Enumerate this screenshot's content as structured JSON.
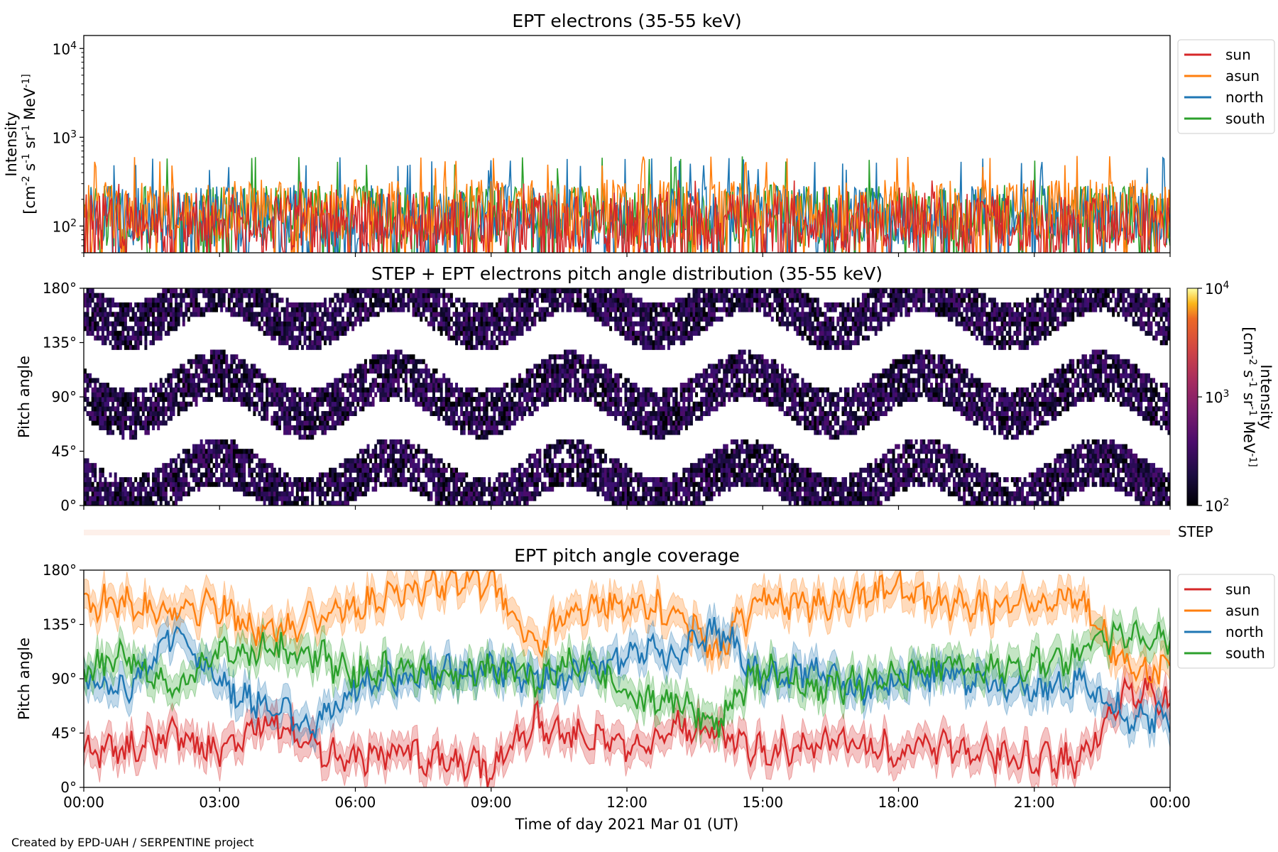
{
  "footer": {
    "credit": "Created by EPD-UAH / SERPENTINE project"
  },
  "colors": {
    "sun": "#d62728",
    "asun": "#ff7f0e",
    "north": "#1f77b4",
    "south": "#2ca02c"
  },
  "colorbar": {
    "colormap": "inferno",
    "ticks": [
      "10^2",
      "10^3",
      "10^4"
    ]
  },
  "chart_data": [
    {
      "type": "line",
      "title": "EPT electrons (35-55 keV)",
      "ylabel": "Intensity",
      "ylabel_units": "[cm^-2 s^-1 sr^-1 MeV^-1]",
      "yscale": "log",
      "ylim": [
        50,
        14000
      ],
      "yticks": [
        "10^2",
        "10^3",
        "10^4"
      ],
      "xlim": [
        "00:00",
        "24:00"
      ],
      "legend": {
        "position": "outside-right",
        "entries": [
          "sun",
          "asun",
          "north",
          "south"
        ]
      },
      "series": [
        {
          "name": "sun",
          "baseline_median": 110,
          "typical_range": [
            50,
            330
          ]
        },
        {
          "name": "asun",
          "baseline_median": 150,
          "typical_range": [
            60,
            620
          ]
        },
        {
          "name": "north",
          "baseline_median": 130,
          "typical_range": [
            55,
            600
          ]
        },
        {
          "name": "south",
          "baseline_median": 130,
          "typical_range": [
            55,
            620
          ]
        }
      ]
    },
    {
      "type": "heatmap",
      "title": "STEP + EPT electrons pitch angle distribution (35-55 keV)",
      "ylabel": "Pitch angle",
      "yticks": [
        "0°",
        "45°",
        "90°",
        "135°",
        "180°"
      ],
      "ylim": [
        0,
        180
      ],
      "xlim": [
        "00:00",
        "24:00"
      ],
      "colorbar_label": "Intensity",
      "colorbar_units": "[cm^-2 s^-1 sr^-1 MeV^-1]",
      "colorbar_range": [
        100,
        10000
      ],
      "colorbar_scale": "log"
    },
    {
      "type": "area",
      "title": "STEP",
      "note": "empty strip"
    },
    {
      "type": "line",
      "title": "EPT pitch angle coverage",
      "ylabel": "Pitch angle",
      "xlabel": "Time of day 2021 Mar 01 (UT)",
      "yticks": [
        "0°",
        "45°",
        "90°",
        "135°",
        "180°"
      ],
      "ylim": [
        0,
        180
      ],
      "xticks": [
        "00:00",
        "03:00",
        "06:00",
        "09:00",
        "12:00",
        "15:00",
        "18:00",
        "21:00",
        "00:00"
      ],
      "legend": {
        "position": "outside-right",
        "entries": [
          "sun",
          "asun",
          "north",
          "south"
        ]
      },
      "x_hours": [
        0,
        1,
        2,
        3,
        4,
        5,
        6,
        7,
        8,
        9,
        10,
        11,
        12,
        13,
        14,
        15,
        16,
        17,
        18,
        19,
        20,
        21,
        22,
        23,
        24
      ],
      "series": [
        {
          "name": "sun",
          "values": [
            30,
            32,
            45,
            28,
            55,
            35,
            25,
            30,
            22,
            15,
            55,
            40,
            35,
            50,
            45,
            30,
            35,
            38,
            30,
            32,
            28,
            25,
            20,
            85,
            70
          ]
        },
        {
          "name": "asun",
          "values": [
            155,
            150,
            148,
            152,
            125,
            140,
            150,
            165,
            168,
            172,
            120,
            150,
            155,
            145,
            110,
            160,
            150,
            155,
            165,
            150,
            150,
            155,
            160,
            100,
            95
          ]
        },
        {
          "name": "north",
          "values": [
            90,
            80,
            130,
            85,
            70,
            50,
            85,
            90,
            95,
            95,
            90,
            95,
            110,
            110,
            130,
            90,
            95,
            80,
            90,
            95,
            85,
            80,
            90,
            60,
            55
          ]
        },
        {
          "name": "south",
          "values": [
            95,
            110,
            80,
            115,
            115,
            110,
            95,
            100,
            95,
            95,
            90,
            105,
            75,
            70,
            55,
            100,
            85,
            85,
            90,
            100,
            100,
            100,
            110,
            130,
            120
          ]
        }
      ]
    }
  ]
}
